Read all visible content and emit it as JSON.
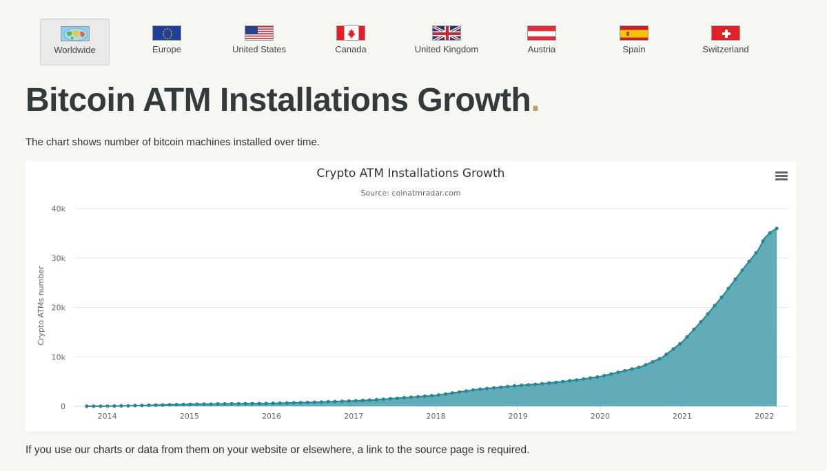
{
  "tabs": [
    {
      "label": "Worldwide",
      "icon": "world-map-icon",
      "active": true
    },
    {
      "label": "Europe",
      "icon": "eu-flag-icon",
      "active": false
    },
    {
      "label": "United States",
      "icon": "us-flag-icon",
      "active": false
    },
    {
      "label": "Canada",
      "icon": "canada-flag-icon",
      "active": false
    },
    {
      "label": "United Kingdom",
      "icon": "uk-flag-icon",
      "active": false
    },
    {
      "label": "Austria",
      "icon": "austria-flag-icon",
      "active": false
    },
    {
      "label": "Spain",
      "icon": "spain-flag-icon",
      "active": false
    },
    {
      "label": "Switzerland",
      "icon": "switzerland-flag-icon",
      "active": false
    }
  ],
  "page": {
    "title": "Bitcoin ATM Installations Growth",
    "title_dot": ".",
    "description": "The chart shows number of bitcoin machines installed over time.",
    "footer_note": "If you use our charts or data from them on your website or elsewhere, a link to the source page is required."
  },
  "colors": {
    "accent_dot": "#c0a060",
    "area_fill": "#4fa3b0",
    "line": "#2a8593"
  },
  "chart_data": {
    "type": "area",
    "title": "Crypto ATM Installations Growth",
    "subtitle": "Source: coinatmradar.com",
    "ylabel": "Crypto ATMs number",
    "xlabel": "",
    "ylim": [
      0,
      40000
    ],
    "xlim": [
      2013.6,
      2022.3
    ],
    "y_ticks": [
      0,
      10000,
      20000,
      30000,
      40000
    ],
    "y_tick_labels": [
      "0",
      "10k",
      "20k",
      "30k",
      "40k"
    ],
    "x_ticks": [
      2014,
      2015,
      2016,
      2017,
      2018,
      2019,
      2020,
      2021,
      2022
    ],
    "x_tick_labels": [
      "2014",
      "2015",
      "2016",
      "2017",
      "2018",
      "2019",
      "2020",
      "2021",
      "2022"
    ],
    "legend": "none",
    "grid": true,
    "series": [
      {
        "name": "Crypto ATMs",
        "x": [
          2013.75,
          2014.0,
          2014.25,
          2014.5,
          2014.75,
          2015.0,
          2015.25,
          2015.5,
          2015.75,
          2016.0,
          2016.25,
          2016.5,
          2016.75,
          2017.0,
          2017.25,
          2017.5,
          2017.75,
          2018.0,
          2018.25,
          2018.5,
          2018.75,
          2019.0,
          2019.25,
          2019.5,
          2019.75,
          2020.0,
          2020.25,
          2020.5,
          2020.75,
          2021.0,
          2021.25,
          2021.5,
          2021.75,
          2021.92,
          2022.0,
          2022.08,
          2022.15
        ],
        "values": [
          10,
          40,
          100,
          200,
          300,
          400,
          450,
          500,
          540,
          600,
          700,
          800,
          950,
          1100,
          1300,
          1600,
          1900,
          2200,
          2800,
          3400,
          3800,
          4200,
          4500,
          4900,
          5400,
          6000,
          7000,
          8000,
          9800,
          13000,
          17500,
          22500,
          28000,
          31500,
          34000,
          35300,
          36000
        ]
      }
    ]
  }
}
